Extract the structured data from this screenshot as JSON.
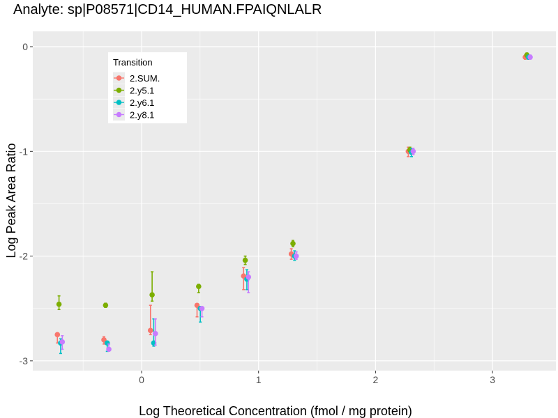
{
  "chart_data": {
    "type": "scatter",
    "title": "Analyte: sp|P08571|CD14_HUMAN.FPAIQNLALR",
    "xlabel": "Log Theoretical Concentration (fmol / mg protein)",
    "ylabel": "Log Peak Area Ratio",
    "xlim": [
      -0.93,
      3.55
    ],
    "ylim": [
      -3.1,
      0.15
    ],
    "xticks": [
      0,
      1,
      2,
      3
    ],
    "xtick_labels": [
      "0",
      "1",
      "2",
      "3"
    ],
    "yticks": [
      0,
      -1,
      -2,
      -3
    ],
    "ytick_labels": [
      "0",
      "-1",
      "-2",
      "-3"
    ],
    "grid": true,
    "legend": {
      "title": "Transition",
      "placement": "top-left"
    },
    "x": [
      -0.699,
      -0.301,
      0.097,
      0.495,
      0.893,
      1.301,
      2.301,
      3.301
    ],
    "series": [
      {
        "name": "2.SUM.",
        "color": "#F8766D",
        "values": [
          -2.75,
          -2.8,
          -2.71,
          -2.47,
          -2.19,
          -1.98,
          -1.0,
          -0.1
        ],
        "err_low": [
          -2.83,
          -2.84,
          -2.75,
          -2.58,
          -2.32,
          -2.03,
          -1.05,
          -0.12
        ],
        "err_high": [
          -2.75,
          -2.77,
          -2.47,
          -2.47,
          -2.11,
          -1.93,
          -0.96,
          -0.08
        ]
      },
      {
        "name": "2.y5.1",
        "color": "#7CAE00",
        "values": [
          -2.46,
          -2.47,
          -2.37,
          -2.29,
          -2.04,
          -1.88,
          -0.985,
          -0.08
        ],
        "err_low": [
          -2.51,
          -2.49,
          -2.43,
          -2.35,
          -2.08,
          -1.91,
          -1.01,
          -0.1
        ],
        "err_high": [
          -2.38,
          -2.45,
          -2.15,
          -2.27,
          -2.0,
          -1.85,
          -0.96,
          -0.06
        ]
      },
      {
        "name": "2.y6.1",
        "color": "#00BFC4",
        "values": [
          -2.83,
          -2.83,
          -2.83,
          -2.5,
          -2.22,
          -2.0,
          -1.01,
          -0.1
        ],
        "err_low": [
          -2.93,
          -2.91,
          -2.86,
          -2.63,
          -2.32,
          -2.04,
          -1.05,
          -0.12
        ],
        "err_high": [
          -2.79,
          -2.83,
          -2.6,
          -2.49,
          -2.13,
          -1.95,
          -0.97,
          -0.08
        ]
      },
      {
        "name": "2.y8.1",
        "color": "#C77CFF",
        "values": [
          -2.82,
          -2.89,
          -2.74,
          -2.5,
          -2.2,
          -2.0,
          -1.0,
          -0.1
        ],
        "err_low": [
          -2.89,
          -2.89,
          -2.85,
          -2.58,
          -2.35,
          -2.03,
          -1.03,
          -0.12
        ],
        "err_high": [
          -2.76,
          -2.84,
          -2.6,
          -2.49,
          -2.15,
          -1.96,
          -0.97,
          -0.08
        ]
      }
    ]
  }
}
